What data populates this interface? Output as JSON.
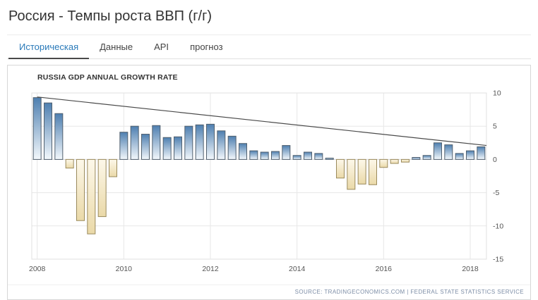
{
  "page": {
    "title": "Россия - Темпы роста ВВП (г/г)"
  },
  "tabs": [
    {
      "id": "historical",
      "label": "Историческая",
      "active": true
    },
    {
      "id": "data",
      "label": "Данные",
      "active": false
    },
    {
      "id": "api",
      "label": "API",
      "active": false
    },
    {
      "id": "forecast",
      "label": "прогноз",
      "active": false
    }
  ],
  "chart_data": {
    "type": "bar",
    "title": "RUSSIA GDP ANNUAL GROWTH RATE",
    "xlabel": "",
    "ylabel": "",
    "ylim": [
      -15,
      10
    ],
    "yticks": [
      10,
      5,
      0,
      -5,
      -10,
      -15
    ],
    "grid": true,
    "legend": "none",
    "x": [
      "2008-Q1",
      "2008-Q2",
      "2008-Q3",
      "2008-Q4",
      "2009-Q1",
      "2009-Q2",
      "2009-Q3",
      "2009-Q4",
      "2010-Q1",
      "2010-Q2",
      "2010-Q3",
      "2010-Q4",
      "2011-Q1",
      "2011-Q2",
      "2011-Q3",
      "2011-Q4",
      "2012-Q1",
      "2012-Q2",
      "2012-Q3",
      "2012-Q4",
      "2013-Q1",
      "2013-Q2",
      "2013-Q3",
      "2013-Q4",
      "2014-Q1",
      "2014-Q2",
      "2014-Q3",
      "2014-Q4",
      "2015-Q1",
      "2015-Q2",
      "2015-Q3",
      "2015-Q4",
      "2016-Q1",
      "2016-Q2",
      "2016-Q3",
      "2016-Q4",
      "2017-Q1",
      "2017-Q2",
      "2017-Q3",
      "2017-Q4",
      "2018-Q1",
      "2018-Q2"
    ],
    "values": [
      9.3,
      8.5,
      6.9,
      -1.3,
      -9.2,
      -11.2,
      -8.6,
      -2.6,
      4.1,
      5.0,
      3.8,
      5.1,
      3.3,
      3.4,
      5.0,
      5.2,
      5.3,
      4.3,
      3.5,
      2.4,
      1.3,
      1.1,
      1.2,
      2.1,
      0.6,
      1.1,
      0.9,
      0.2,
      -2.8,
      -4.5,
      -3.7,
      -3.8,
      -1.2,
      -0.6,
      -0.4,
      0.3,
      0.6,
      2.5,
      2.2,
      0.9,
      1.3,
      1.9
    ],
    "year_ticks": [
      {
        "label": "2008",
        "index": 0
      },
      {
        "label": "2010",
        "index": 8
      },
      {
        "label": "2012",
        "index": 16
      },
      {
        "label": "2014",
        "index": 24
      },
      {
        "label": "2016",
        "index": 32
      },
      {
        "label": "2018",
        "index": 40
      }
    ],
    "trendline": {
      "from": 9.4,
      "to": 2.1
    },
    "colors": {
      "pos_top": "#4e7fb0",
      "pos_bottom": "#f3f8fc",
      "neg_top": "#fdf8ea",
      "neg_bottom": "#ead9a8",
      "bar_border_pos": "#51606e",
      "bar_border_neg": "#9a8a5c",
      "grid": "#e7e7e7",
      "zero": "#d6d6d6",
      "frame": "#e0e0e0",
      "trend": "#4a4a4a",
      "axis_text": "#555555",
      "active_tab": "#2a7ab9"
    }
  },
  "footer": {
    "source": "SOURCE: TRADINGECONOMICS.COM  |  FEDERAL STATE STATISTICS SERVICE"
  }
}
